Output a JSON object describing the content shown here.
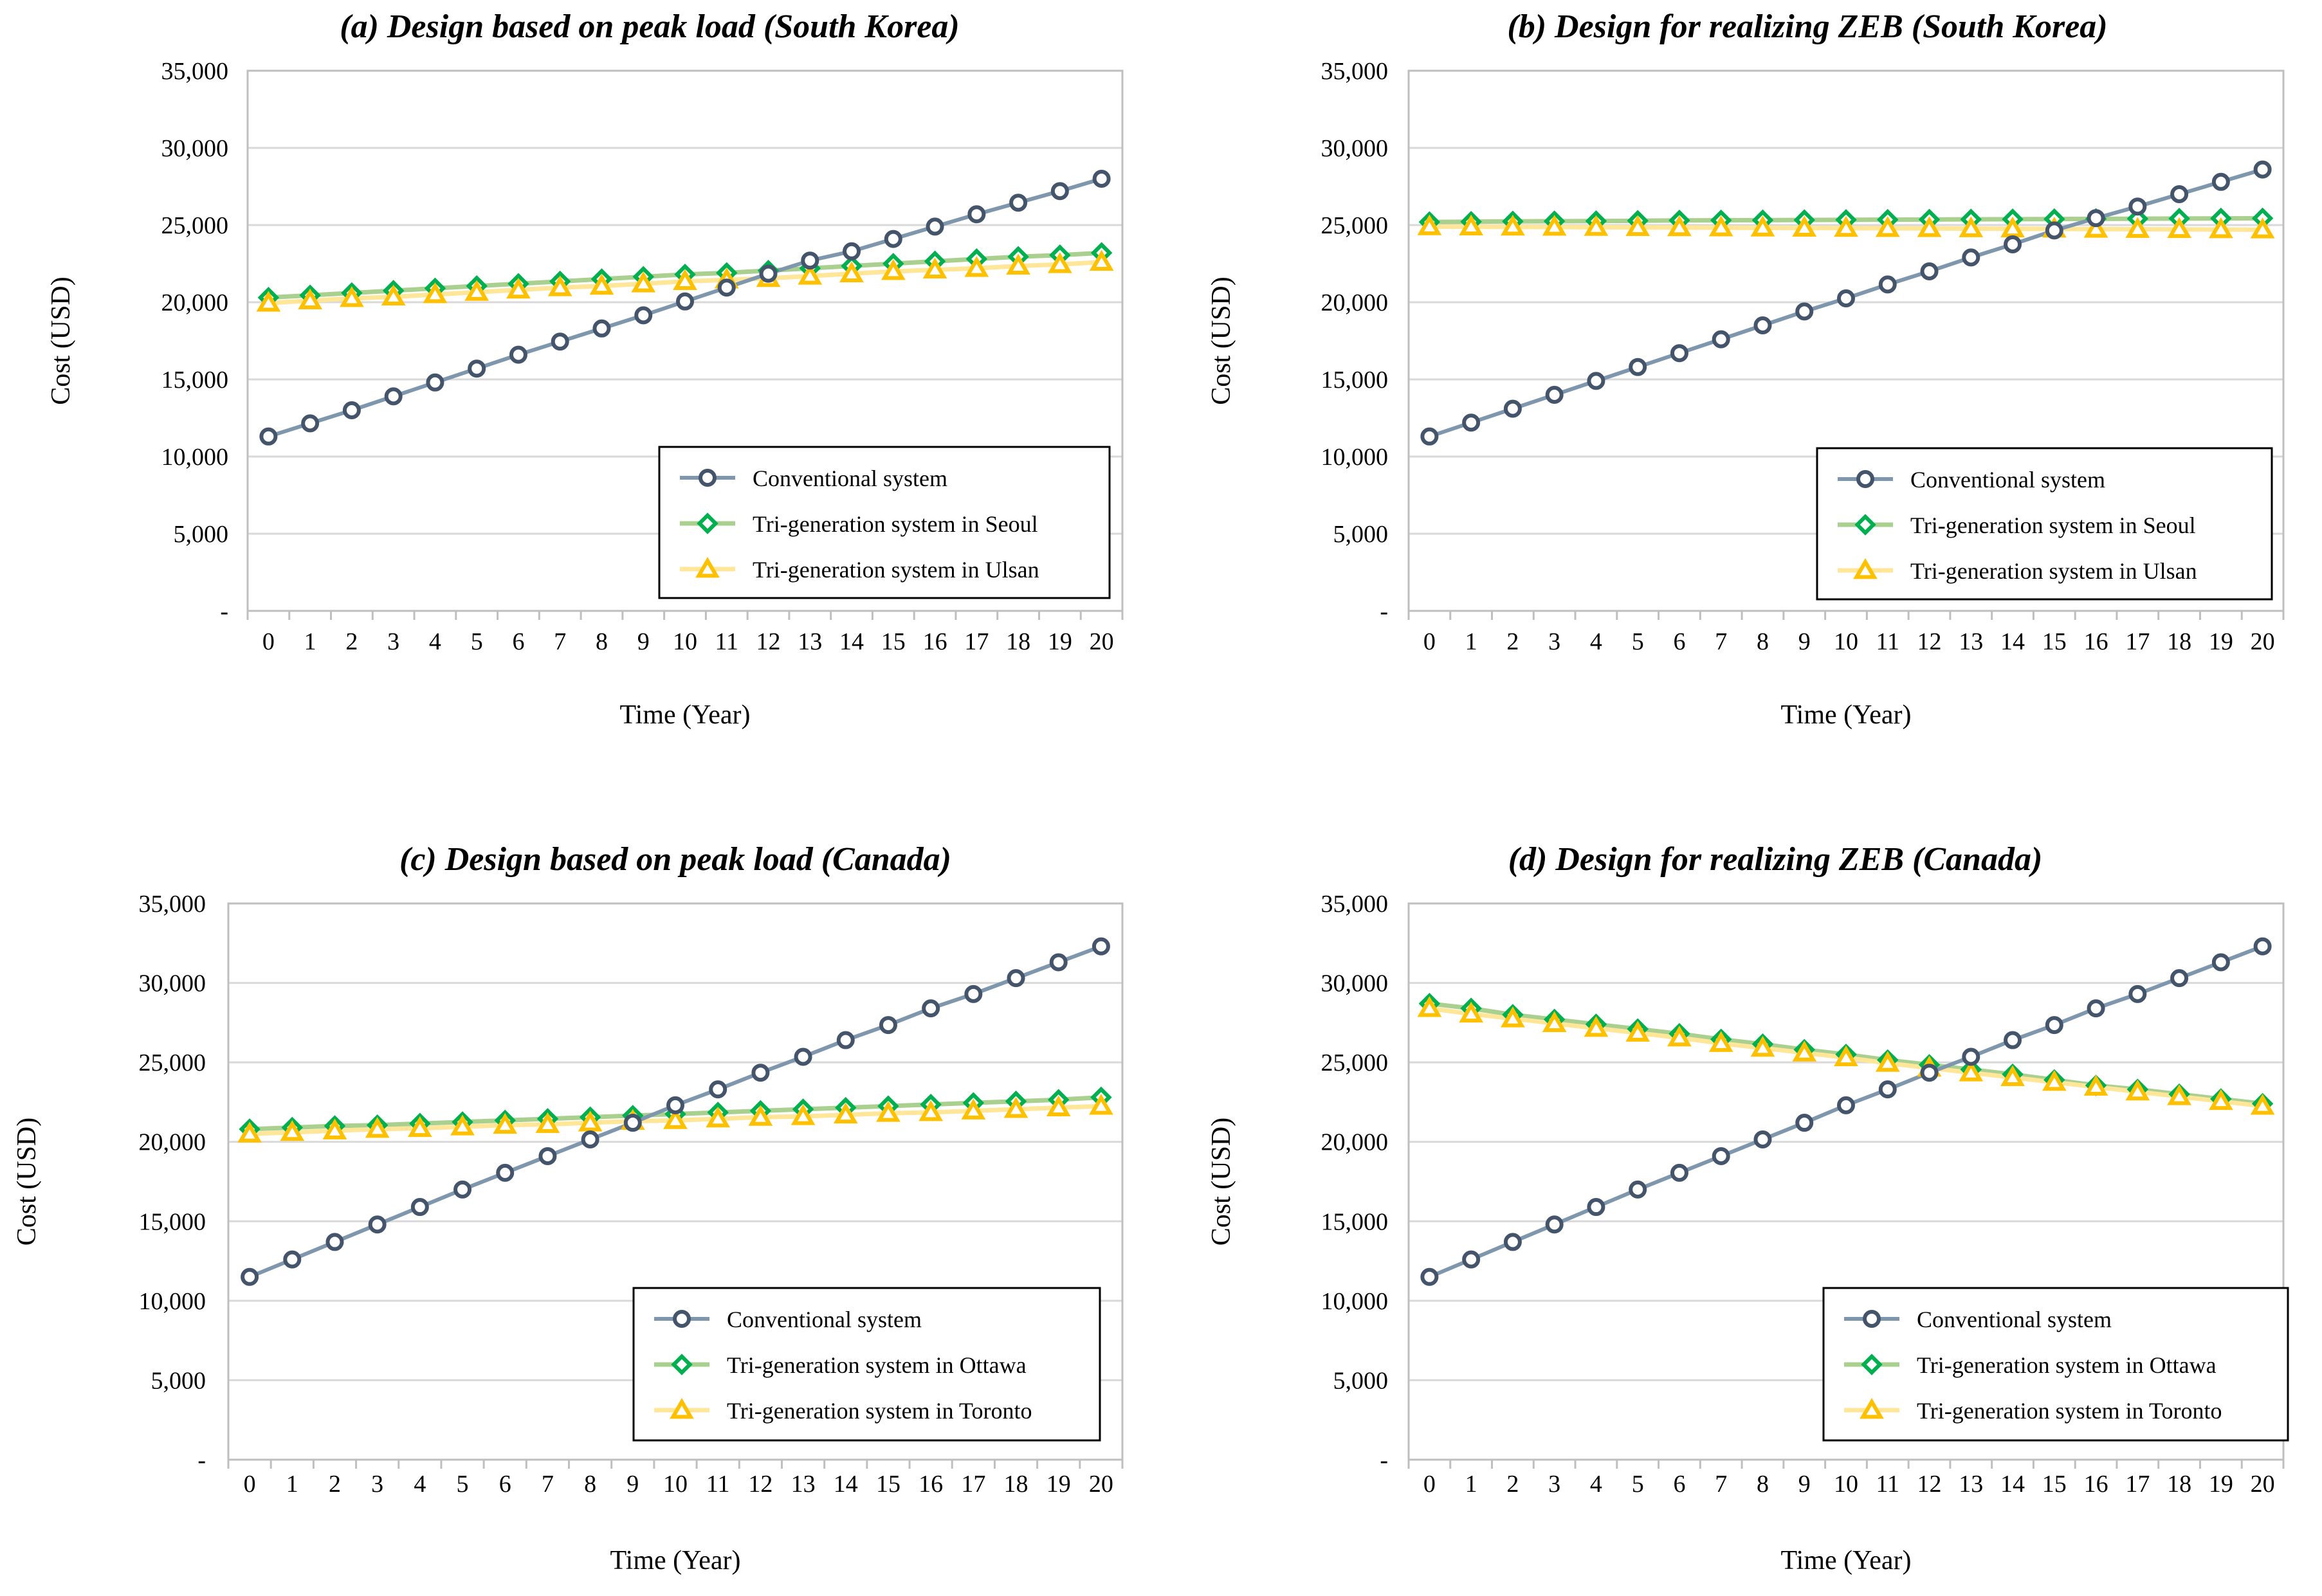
{
  "colors": {
    "conventional_line": "#7f97ad",
    "conventional_marker": "#44546a",
    "green_line": "#a9d08e",
    "green_marker": "#00b050",
    "yellow_line": "#ffe699",
    "yellow_marker": "#ffc000",
    "gridline": "#d9d9d9",
    "axis": "#bfbfbf"
  },
  "chart_data": [
    {
      "id": "a",
      "type": "line",
      "title": "(a) Design based on peak load (South Korea)",
      "xlabel": "Time (Year)",
      "ylabel": "Cost (USD)",
      "ylim": [
        0,
        35000
      ],
      "yticks": [
        "-",
        "5,000",
        "10,000",
        "15,000",
        "20,000",
        "25,000",
        "30,000",
        "35,000"
      ],
      "x": [
        0,
        1,
        2,
        3,
        4,
        5,
        6,
        7,
        8,
        9,
        10,
        11,
        12,
        13,
        14,
        15,
        16,
        17,
        18,
        19,
        20
      ],
      "legend_position": "bottom-right",
      "series": [
        {
          "name": "Conventional system",
          "marker": "circle",
          "values": [
            11300,
            12150,
            13000,
            13900,
            14800,
            15700,
            16600,
            17450,
            18300,
            19150,
            20050,
            20950,
            21850,
            22700,
            23300,
            24100,
            24900,
            25700,
            26450,
            27200,
            28000
          ]
        },
        {
          "name": "Tri-generation system in Seoul",
          "marker": "diamond",
          "values": [
            20300,
            20450,
            20600,
            20750,
            20900,
            21050,
            21200,
            21350,
            21500,
            21650,
            21800,
            21900,
            22050,
            22200,
            22350,
            22500,
            22650,
            22800,
            22950,
            23050,
            23200
          ]
        },
        {
          "name": "Tri-generation system in Ulsan",
          "marker": "triangle",
          "values": [
            19950,
            20100,
            20250,
            20350,
            20500,
            20650,
            20800,
            20950,
            21050,
            21200,
            21350,
            21450,
            21550,
            21700,
            21850,
            22000,
            22100,
            22200,
            22350,
            22450,
            22600
          ]
        }
      ]
    },
    {
      "id": "b",
      "type": "line",
      "title": "(b) Design for realizing ZEB (South Korea)",
      "xlabel": "Time (Year)",
      "ylabel": "Cost (USD)",
      "ylim": [
        0,
        35000
      ],
      "yticks": [
        "-",
        "5,000",
        "10,000",
        "15,000",
        "20,000",
        "25,000",
        "30,000",
        "35,000"
      ],
      "x": [
        0,
        1,
        2,
        3,
        4,
        5,
        6,
        7,
        8,
        9,
        10,
        11,
        12,
        13,
        14,
        15,
        16,
        17,
        18,
        19,
        20
      ],
      "legend_position": "bottom-right",
      "series": [
        {
          "name": "Conventional system",
          "marker": "circle",
          "values": [
            11300,
            12200,
            13100,
            14000,
            14900,
            15800,
            16700,
            17600,
            18500,
            19400,
            20250,
            21150,
            22000,
            22900,
            23750,
            24650,
            25450,
            26200,
            27000,
            27800,
            28600
          ]
        },
        {
          "name": "Tri-generation system in Seoul",
          "marker": "diamond",
          "values": [
            25200,
            25220,
            25240,
            25250,
            25260,
            25280,
            25300,
            25310,
            25320,
            25330,
            25340,
            25350,
            25360,
            25370,
            25380,
            25390,
            25400,
            25410,
            25420,
            25430,
            25440
          ]
        },
        {
          "name": "Tri-generation system in Ulsan",
          "marker": "triangle",
          "values": [
            24900,
            24890,
            24880,
            24870,
            24860,
            24850,
            24840,
            24830,
            24820,
            24810,
            24800,
            24790,
            24780,
            24770,
            24760,
            24750,
            24740,
            24730,
            24720,
            24710,
            24700
          ]
        }
      ]
    },
    {
      "id": "c",
      "type": "line",
      "title": "(c) Design based on peak load (Canada)",
      "xlabel": "Time (Year)",
      "ylabel": "Cost (USD)",
      "ylim": [
        0,
        35000
      ],
      "yticks": [
        "-",
        "5,000",
        "10,000",
        "15,000",
        "20,000",
        "25,000",
        "30,000",
        "35,000"
      ],
      "x": [
        0,
        1,
        2,
        3,
        4,
        5,
        6,
        7,
        8,
        9,
        10,
        11,
        12,
        13,
        14,
        15,
        16,
        17,
        18,
        19,
        20
      ],
      "legend_position": "bottom-right",
      "series": [
        {
          "name": "Conventional system",
          "marker": "circle",
          "values": [
            11500,
            12600,
            13700,
            14800,
            15900,
            17000,
            18050,
            19100,
            20150,
            21200,
            22300,
            23300,
            24350,
            25350,
            26400,
            27350,
            28400,
            29300,
            30300,
            31300,
            32300
          ]
        },
        {
          "name": "Tri-generation system in Ottawa",
          "marker": "diamond",
          "values": [
            20800,
            20900,
            21000,
            21050,
            21150,
            21250,
            21350,
            21450,
            21550,
            21650,
            21750,
            21850,
            21950,
            22050,
            22150,
            22250,
            22350,
            22450,
            22550,
            22650,
            22800
          ]
        },
        {
          "name": "Tri-generation system in Toronto",
          "marker": "triangle",
          "values": [
            20500,
            20600,
            20700,
            20800,
            20850,
            20950,
            21050,
            21100,
            21200,
            21300,
            21350,
            21450,
            21550,
            21600,
            21700,
            21800,
            21850,
            21950,
            22050,
            22150,
            22250
          ]
        }
      ]
    },
    {
      "id": "d",
      "type": "line",
      "title": "(d) Design for realizing ZEB (Canada)",
      "xlabel": "Time (Year)",
      "ylabel": "Cost (USD)",
      "ylim": [
        0,
        35000
      ],
      "yticks": [
        "-",
        "5,000",
        "10,000",
        "15,000",
        "20,000",
        "25,000",
        "30,000",
        "35,000"
      ],
      "x": [
        0,
        1,
        2,
        3,
        4,
        5,
        6,
        7,
        8,
        9,
        10,
        11,
        12,
        13,
        14,
        15,
        16,
        17,
        18,
        19,
        20
      ],
      "legend_position": "bottom-right",
      "series": [
        {
          "name": "Conventional system",
          "marker": "circle",
          "values": [
            11500,
            12600,
            13700,
            14800,
            15900,
            17000,
            18050,
            19100,
            20150,
            21200,
            22300,
            23300,
            24350,
            25350,
            26400,
            27350,
            28400,
            29300,
            30300,
            31300,
            32300
          ]
        },
        {
          "name": "Tri-generation system in Ottawa",
          "marker": "diamond",
          "values": [
            28700,
            28400,
            28000,
            27700,
            27400,
            27100,
            26800,
            26450,
            26150,
            25800,
            25500,
            25150,
            24850,
            24550,
            24250,
            23900,
            23550,
            23300,
            23000,
            22700,
            22400
          ]
        },
        {
          "name": "Tri-generation system in Toronto",
          "marker": "triangle",
          "values": [
            28400,
            28050,
            27750,
            27450,
            27150,
            26850,
            26550,
            26200,
            25900,
            25600,
            25300,
            24950,
            24650,
            24350,
            24050,
            23750,
            23450,
            23150,
            22850,
            22550,
            22250
          ]
        }
      ]
    }
  ]
}
